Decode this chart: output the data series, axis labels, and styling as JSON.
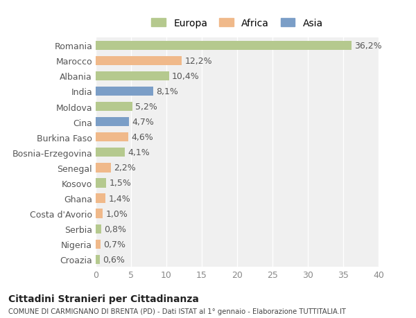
{
  "countries": [
    "Romania",
    "Marocco",
    "Albania",
    "India",
    "Moldova",
    "Cina",
    "Burkina Faso",
    "Bosnia-Erzegovina",
    "Senegal",
    "Kosovo",
    "Ghana",
    "Costa d'Avorio",
    "Serbia",
    "Nigeria",
    "Croazia"
  ],
  "values": [
    36.2,
    12.2,
    10.4,
    8.1,
    5.2,
    4.7,
    4.6,
    4.1,
    2.2,
    1.5,
    1.4,
    1.0,
    0.8,
    0.7,
    0.6
  ],
  "labels": [
    "36,2%",
    "12,2%",
    "10,4%",
    "8,1%",
    "5,2%",
    "4,7%",
    "4,6%",
    "4,1%",
    "2,2%",
    "1,5%",
    "1,4%",
    "1,0%",
    "0,8%",
    "0,7%",
    "0,6%"
  ],
  "continents": [
    "Europa",
    "Africa",
    "Europa",
    "Asia",
    "Europa",
    "Asia",
    "Africa",
    "Europa",
    "Africa",
    "Europa",
    "Africa",
    "Africa",
    "Europa",
    "Africa",
    "Europa"
  ],
  "colors": {
    "Europa": "#b5c98e",
    "Africa": "#f0b98a",
    "Asia": "#7b9ec7"
  },
  "xlim": [
    0,
    40
  ],
  "xticks": [
    0,
    5,
    10,
    15,
    20,
    25,
    30,
    35,
    40
  ],
  "title": "Cittadini Stranieri per Cittadinanza",
  "subtitle": "COMUNE DI CARMIGNANO DI BRENTA (PD) - Dati ISTAT al 1° gennaio - Elaborazione TUTTITALIA.IT",
  "background_color": "#ffffff",
  "plot_bg_color": "#f0f0f0",
  "grid_color": "#ffffff",
  "bar_height": 0.6,
  "label_fontsize": 9,
  "tick_fontsize": 9
}
